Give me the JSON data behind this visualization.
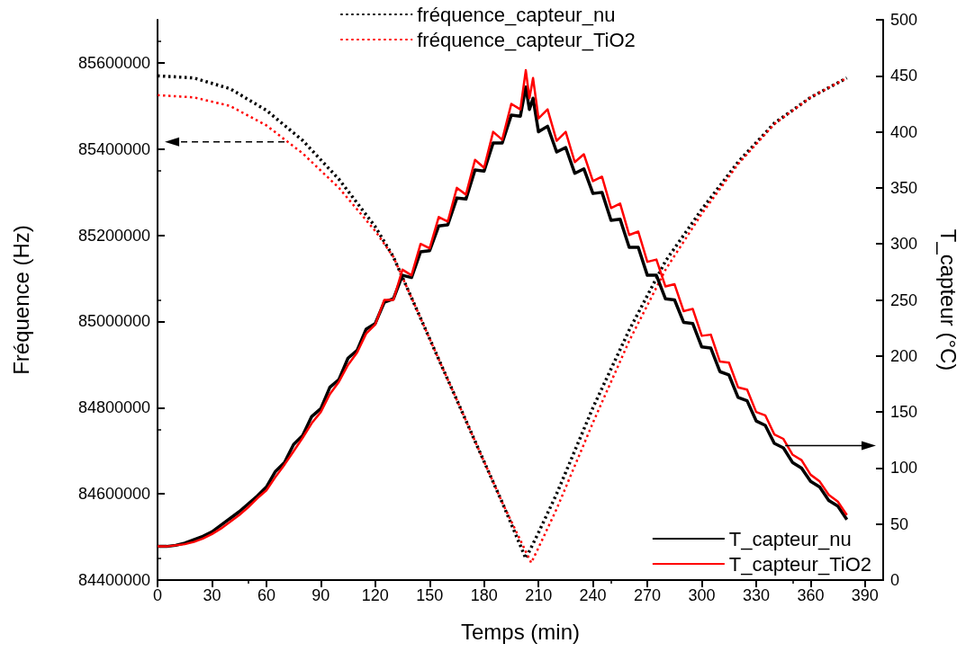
{
  "chart_data": {
    "type": "line",
    "xlabel": "Temps (min)",
    "ylabel": "Fréquence (Hz)",
    "y2label": "T_capteur (°C)",
    "xlim": [
      0,
      400
    ],
    "xticks": [
      0,
      30,
      60,
      90,
      120,
      150,
      180,
      210,
      240,
      270,
      300,
      330,
      360,
      390
    ],
    "ylim": [
      84400000,
      85700000
    ],
    "yticks": [
      84400000,
      84600000,
      84800000,
      85000000,
      85200000,
      85400000,
      85600000
    ],
    "y2lim": [
      0,
      500
    ],
    "y2ticks": [
      0,
      50,
      100,
      150,
      200,
      250,
      300,
      350,
      400,
      450,
      500
    ],
    "grid": false,
    "marker": "none",
    "legend": [
      "top",
      "bottom right"
    ],
    "series": [
      {
        "name": "fréquence_capteur_nu",
        "color": "#000000",
        "line_style": "dotted",
        "x": [
          0,
          20,
          40,
          60,
          80,
          100,
          120,
          130,
          150,
          170,
          190,
          203,
          210,
          220,
          240,
          260,
          280,
          300,
          320,
          340,
          360,
          380
        ],
        "values": [
          85570000,
          85565000,
          85540000,
          85490000,
          85420000,
          85330000,
          85220000,
          85150000,
          84960000,
          84770000,
          84580000,
          84450000,
          84510000,
          84600000,
          84800000,
          84980000,
          85140000,
          85260000,
          85370000,
          85460000,
          85520000,
          85565000
        ]
      },
      {
        "name": "fréquence_capteur_TiO2",
        "color": "#ff0000",
        "line_style": "dotted",
        "x": [
          0,
          20,
          40,
          60,
          80,
          100,
          120,
          130,
          150,
          170,
          190,
          206,
          210,
          220,
          240,
          260,
          280,
          300,
          320,
          340,
          360,
          380
        ],
        "values": [
          85525000,
          85520000,
          85500000,
          85455000,
          85390000,
          85310000,
          85210000,
          85150000,
          84960000,
          84770000,
          84580000,
          84440000,
          84475000,
          84565000,
          84765000,
          84955000,
          85120000,
          85250000,
          85365000,
          85458000,
          85520000,
          85565000
        ]
      },
      {
        "name": "T_capteur_nu",
        "color": "#000000",
        "line_style": "solid",
        "axis": "y2",
        "x": [
          0,
          5,
          10,
          15,
          20,
          25,
          30,
          35,
          40,
          45,
          50,
          55,
          60,
          65,
          70,
          75,
          80,
          85,
          90,
          95,
          100,
          105,
          110,
          115,
          120,
          125,
          130,
          135,
          140,
          145,
          150,
          155,
          160,
          165,
          170,
          175,
          180,
          185,
          190,
          195,
          200,
          203,
          205,
          207,
          210,
          215,
          220,
          225,
          230,
          235,
          240,
          245,
          250,
          255,
          260,
          265,
          270,
          275,
          280,
          285,
          290,
          295,
          300,
          305,
          310,
          315,
          320,
          325,
          330,
          335,
          340,
          345,
          350,
          355,
          360,
          365,
          370,
          375,
          380
        ],
        "values": [
          30,
          30,
          31,
          33,
          36,
          39,
          43,
          49,
          55,
          61,
          68,
          75,
          83,
          97,
          105,
          121,
          129,
          146,
          153,
          172,
          179,
          198,
          205,
          224,
          229,
          248,
          251,
          272,
          270,
          293,
          294,
          316,
          317,
          341,
          340,
          366,
          365,
          390,
          390,
          415,
          414,
          440,
          420,
          430,
          400,
          405,
          382,
          386,
          363,
          367,
          345,
          346,
          321,
          322,
          297,
          297,
          272,
          272,
          251,
          250,
          230,
          229,
          208,
          207,
          186,
          183,
          163,
          160,
          142,
          138,
          122,
          118,
          105,
          100,
          88,
          83,
          71,
          66,
          54
        ]
      },
      {
        "name": "T_capteur_TiO2",
        "color": "#ff0000",
        "line_style": "solid",
        "axis": "y2",
        "x": [
          0,
          5,
          10,
          15,
          20,
          25,
          30,
          35,
          40,
          45,
          50,
          55,
          60,
          65,
          70,
          75,
          80,
          85,
          90,
          95,
          100,
          105,
          110,
          115,
          120,
          125,
          130,
          135,
          140,
          145,
          150,
          155,
          160,
          165,
          170,
          175,
          180,
          185,
          190,
          195,
          200,
          203,
          205,
          207,
          210,
          215,
          220,
          225,
          230,
          235,
          240,
          245,
          250,
          255,
          260,
          265,
          270,
          275,
          280,
          285,
          290,
          295,
          300,
          305,
          310,
          315,
          320,
          325,
          330,
          335,
          340,
          345,
          350,
          355,
          360,
          365,
          370,
          375,
          380
        ],
        "values": [
          30,
          30,
          31,
          32,
          34,
          37,
          41,
          46,
          52,
          58,
          65,
          73,
          80,
          92,
          103,
          115,
          127,
          140,
          150,
          166,
          177,
          192,
          203,
          220,
          228,
          250,
          250,
          277,
          272,
          300,
          296,
          324,
          320,
          350,
          344,
          375,
          368,
          400,
          393,
          425,
          420,
          455,
          430,
          448,
          412,
          420,
          392,
          400,
          373,
          380,
          356,
          360,
          332,
          336,
          308,
          311,
          284,
          286,
          262,
          264,
          240,
          242,
          218,
          219,
          195,
          194,
          172,
          170,
          150,
          147,
          130,
          126,
          112,
          107,
          94,
          88,
          76,
          70,
          58
        ]
      }
    ]
  }
}
